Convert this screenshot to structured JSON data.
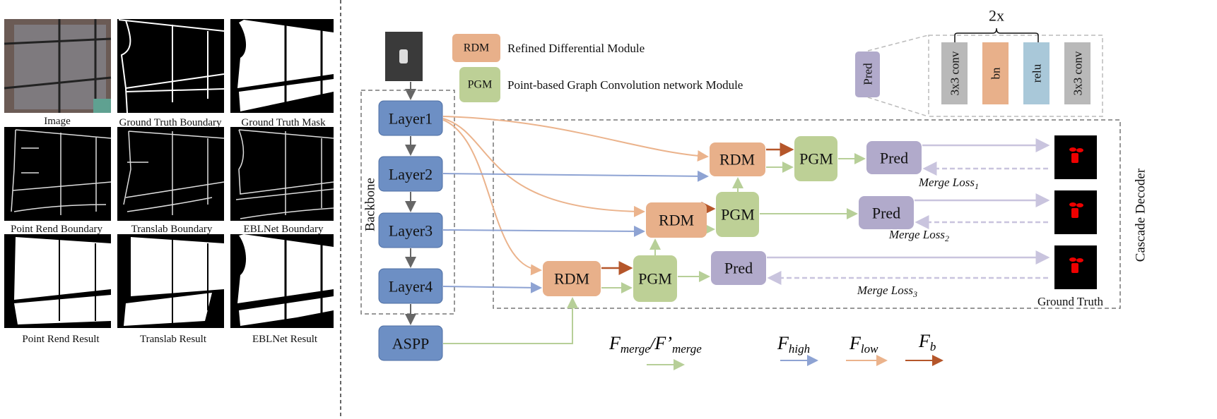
{
  "comparison_grid": {
    "captions": [
      "Image",
      "Ground Truth Boundary",
      "Ground Truth Mask",
      "Point Rend Boundary",
      "Translab Boundary",
      "EBLNet Boundary",
      "Point Rend Result",
      "Translab Result",
      "EBLNet Result"
    ]
  },
  "legend": {
    "rdm_abbr": "RDM",
    "rdm_full": "Refined Differential Module",
    "pgm_abbr": "PGM",
    "pgm_full": "Point-based Graph Convolution network Module"
  },
  "pred_detail": {
    "pred_label": "Pred",
    "repeat": "2x",
    "blocks": [
      "3x3 conv",
      "bn",
      "relu",
      "3x3 conv"
    ]
  },
  "backbone": {
    "label": "Backbone",
    "layers": [
      "Layer1",
      "Layer2",
      "Layer3",
      "Layer4"
    ],
    "aspp": "ASPP"
  },
  "decoder": {
    "label": "Cascade Decoder",
    "rdm": "RDM",
    "pgm": "PGM",
    "pred": "Pred",
    "merge_loss": "Merge Loss",
    "loss_indices": [
      "1",
      "2",
      "3"
    ],
    "ground_truth": "Ground Truth"
  },
  "arrow_legend": {
    "merge": {
      "F": "F",
      "sub": "merge",
      "sep": "/",
      "F2": "F’",
      "sub2": "merge",
      "color": "#b7cf98"
    },
    "high": {
      "F": "F",
      "sub": "high",
      "color": "#8ea3d3"
    },
    "low": {
      "F": "F",
      "sub": "low",
      "color": "#ebb38c"
    },
    "b": {
      "F": "F",
      "sub": "b",
      "color": "#b5562a"
    }
  },
  "colors": {
    "layer": "#6d8fc4",
    "rdm": "#e8b08a",
    "pgm": "#bdd096",
    "pred": "#b1aacb",
    "conv": "#b9b9b9",
    "relu": "#a9c8d9",
    "pred_arrow": "#c9c4de"
  }
}
